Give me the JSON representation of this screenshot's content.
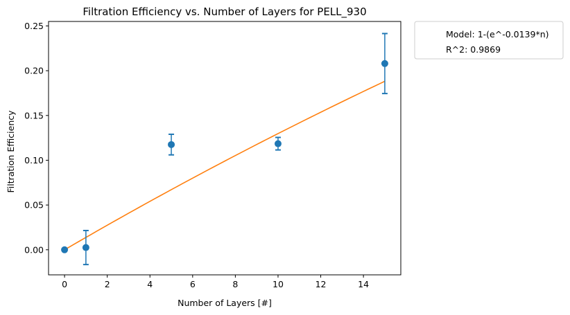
{
  "chart_data": {
    "type": "scatter",
    "title": "Filtration Efficiency vs. Number of Layers for PELL_930",
    "xlabel": "Number of Layers [#]",
    "ylabel": "Filtration Efficiency",
    "xlim": [
      -0.75,
      15.75
    ],
    "ylim": [
      -0.028,
      0.255
    ],
    "xticks": [
      0,
      2,
      4,
      6,
      8,
      10,
      12,
      14
    ],
    "yticks": [
      0.0,
      0.05,
      0.1,
      0.15,
      0.2,
      0.25
    ],
    "xtick_labels": [
      "0",
      "2",
      "4",
      "6",
      "8",
      "10",
      "12",
      "14"
    ],
    "ytick_labels": [
      "0.00",
      "0.05",
      "0.10",
      "0.15",
      "0.20",
      "0.25"
    ],
    "grid": false,
    "legend_placement": "outside-top-right",
    "legend": [
      "Model: 1-(e^-0.0139*n)",
      "R^2: 0.9869"
    ],
    "measured": {
      "color": "#1f77b4",
      "points": [
        {
          "x": 0,
          "y": 0.0,
          "err": 0.0
        },
        {
          "x": 1,
          "y": 0.0025,
          "err": 0.019
        },
        {
          "x": 5,
          "y": 0.1175,
          "err": 0.0115
        },
        {
          "x": 10,
          "y": 0.1185,
          "err": 0.007
        },
        {
          "x": 15,
          "y": 0.208,
          "err": 0.0335
        }
      ]
    },
    "model": {
      "color": "#ff7f0e",
      "k": 0.0139,
      "x_range": [
        0,
        15
      ]
    }
  }
}
